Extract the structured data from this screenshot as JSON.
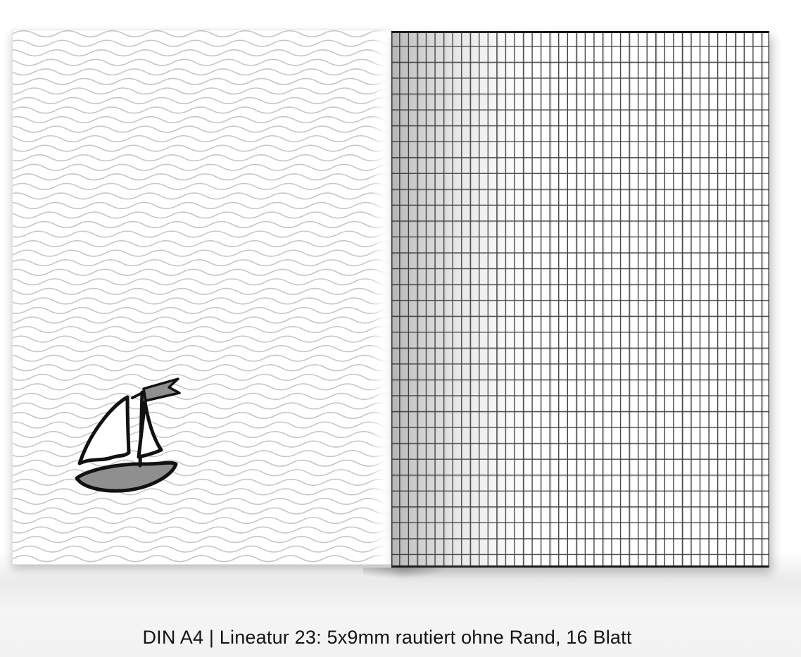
{
  "caption": {
    "text": "DIN A4 | Lineatur 23: 5x9mm rautiert ohne Rand, 16 Blatt"
  },
  "book": {
    "left_page": {
      "name": "cover-with-wave-pattern",
      "motif": "sailboat-sketch"
    },
    "right_page": {
      "name": "ruling-sample-grid",
      "ruling_label_from_caption": "5x9mm rautiert ohne Rand"
    }
  },
  "colors": {
    "wave_line": "#c6c6c6",
    "grid_line": "#454545",
    "page_edge": "#161616",
    "hull_gray": "#8f8f8f",
    "sketch_ink": "#111111",
    "caption_text": "#141414"
  }
}
